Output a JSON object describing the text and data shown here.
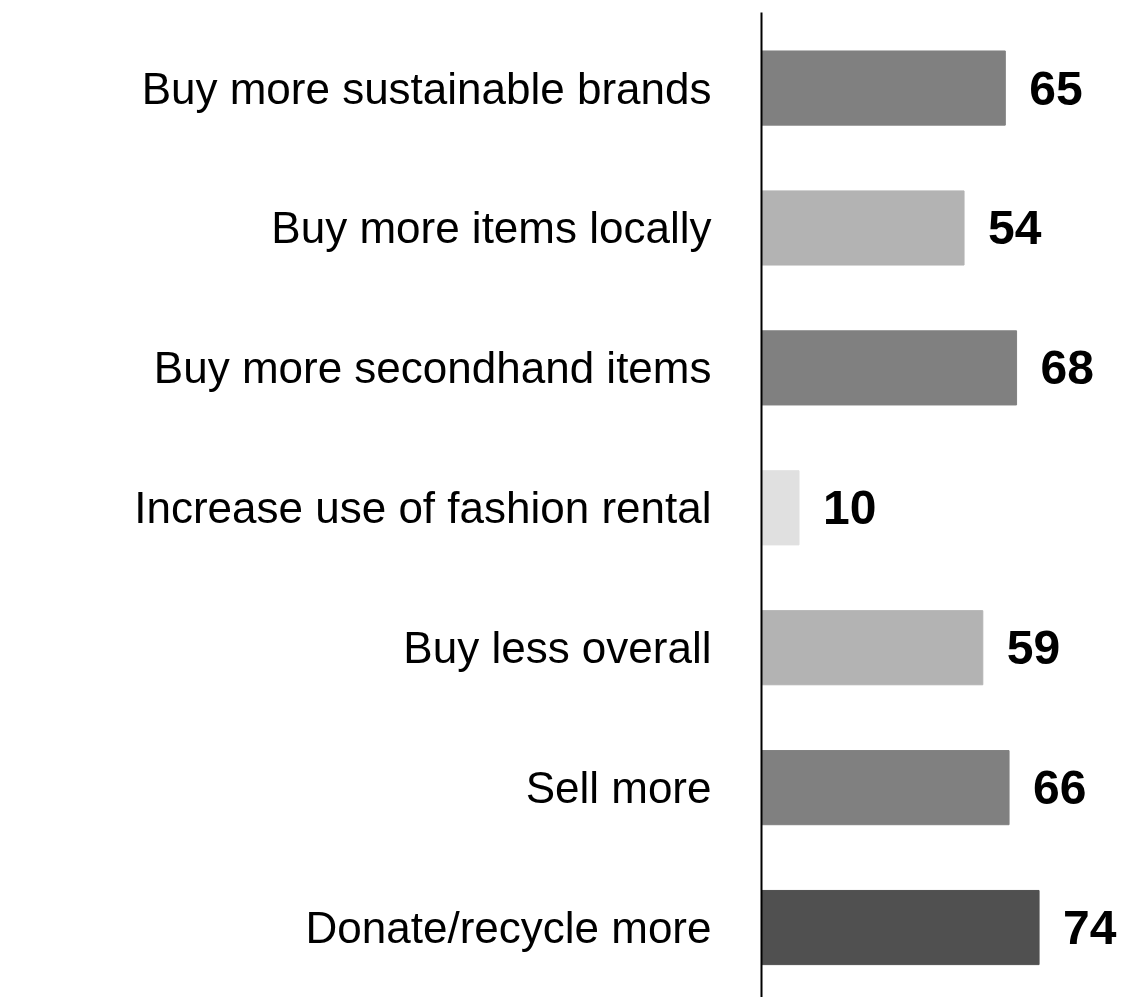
{
  "chart_data": {
    "type": "bar",
    "orientation": "horizontal",
    "data_labels": true,
    "categories": [
      "Buy more sustainable brands",
      "Buy more items locally",
      "Buy more secondhand items",
      "Increase use of fashion rental",
      "Buy less overall",
      "Sell more",
      "Donate/recycle more"
    ],
    "values": [
      65,
      54,
      68,
      10,
      59,
      66,
      74
    ],
    "colors": [
      "#808080",
      "#b3b3b3",
      "#808080",
      "#e0e0e0",
      "#b3b3b3",
      "#808080",
      "#505050"
    ]
  }
}
